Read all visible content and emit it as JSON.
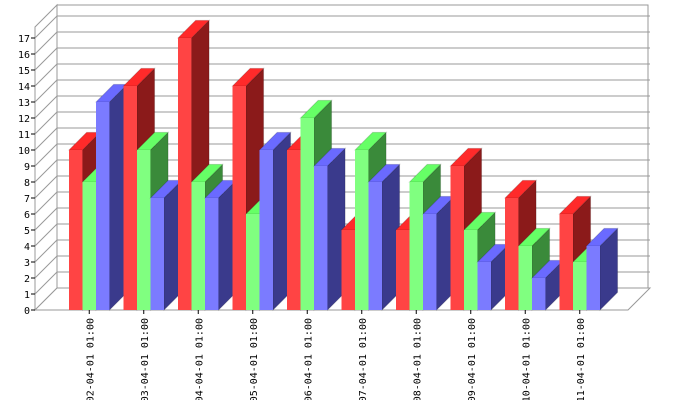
{
  "chart_data": {
    "type": "bar",
    "title": "",
    "xlabel": "",
    "ylabel": "",
    "ylim": [
      0,
      18
    ],
    "yticks": [
      0,
      1,
      2,
      3,
      4,
      5,
      6,
      7,
      8,
      9,
      10,
      11,
      12,
      13,
      14,
      15,
      16,
      17
    ],
    "grid": true,
    "three_d": true,
    "legend": "none",
    "categories": [
      "02-04-01 01:00",
      "03-04-01 01:00",
      "04-04-01 01:00",
      "05-04-01 01:00",
      "06-04-01 01:00",
      "07-04-01 01:00",
      "08-04-01 01:00",
      "09-04-01 01:00",
      "10-04-01 01:00",
      "11-04-01 01:00"
    ],
    "series": [
      {
        "values": [
          10,
          14,
          17,
          14,
          10,
          5,
          5,
          9,
          7,
          6
        ],
        "color": "#ff4444",
        "top_color": "#ff2a2a",
        "side_color": "#8b1a1a"
      },
      {
        "values": [
          8,
          10,
          8,
          6,
          12,
          10,
          8,
          5,
          4,
          3
        ],
        "color": "#80ff80",
        "top_color": "#66ff66",
        "side_color": "#3a8a3a"
      },
      {
        "values": [
          13,
          7,
          7,
          10,
          9,
          8,
          6,
          3,
          2,
          4
        ],
        "color": "#7b7bff",
        "top_color": "#6a6aff",
        "side_color": "#3a3a8c"
      }
    ]
  }
}
